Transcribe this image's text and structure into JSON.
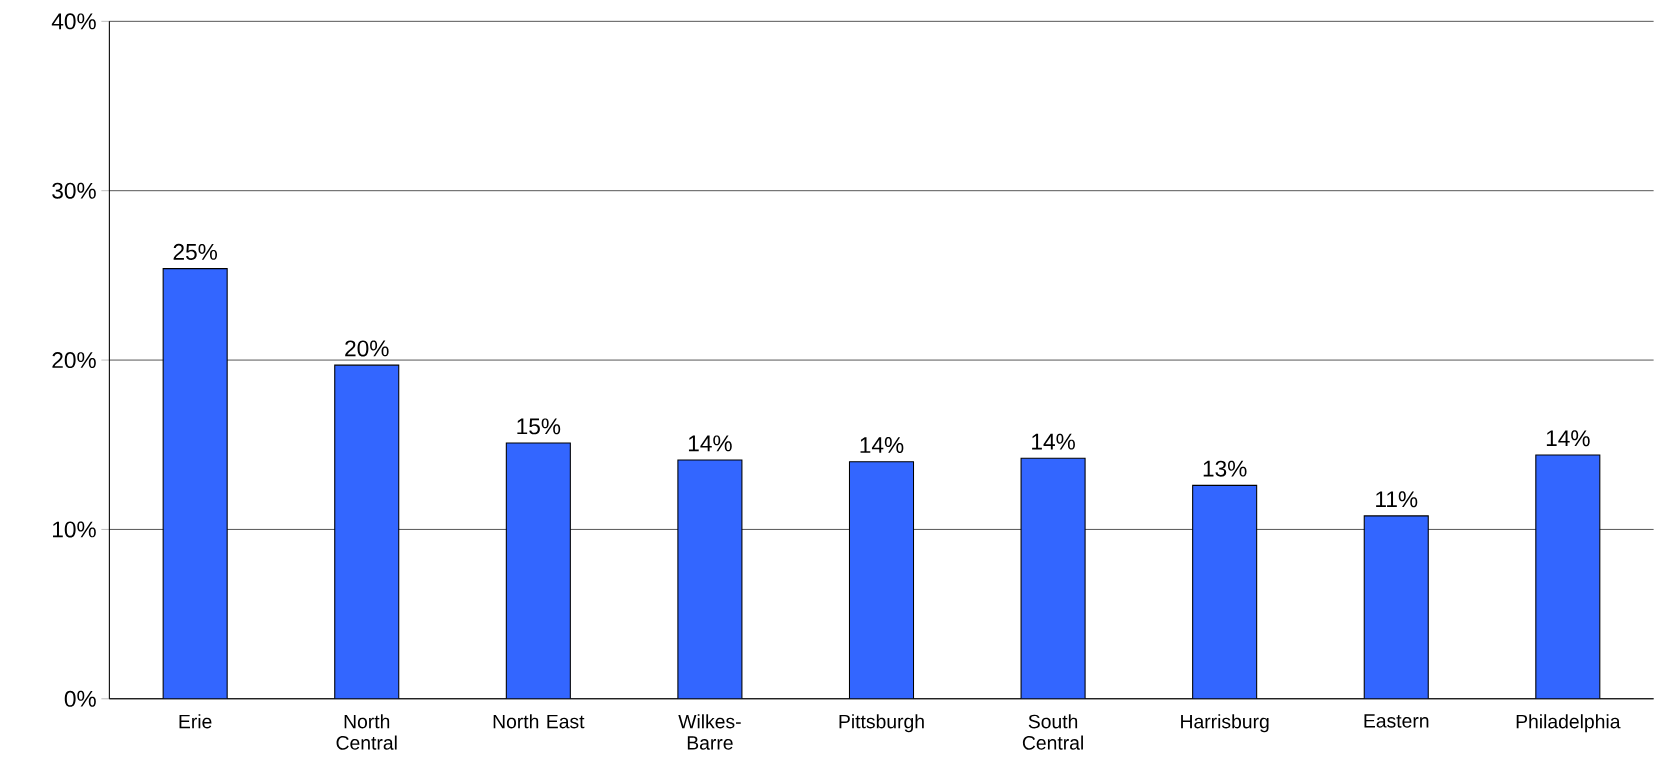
{
  "chart_data": {
    "type": "bar",
    "categories": [
      "Erie",
      "North Central",
      "North East",
      "Wilkes-Barre",
      "Pittsburgh",
      "South Central",
      "Harrisburg",
      "Eastern",
      "Philadelphia"
    ],
    "values": [
      25.4,
      19.7,
      15.1,
      14.1,
      14.0,
      14.2,
      12.6,
      10.8,
      14.4
    ],
    "value_labels": [
      "25%",
      "20%",
      "15%",
      "14%",
      "14%",
      "14%",
      "13%",
      "11%",
      "14%"
    ],
    "color": "#3366ff",
    "ylim": [
      0,
      40
    ],
    "yticks": [
      {
        "value": 0,
        "label": "0%"
      },
      {
        "value": 10,
        "label": "10%"
      },
      {
        "value": 20,
        "label": "20%"
      },
      {
        "value": 30,
        "label": "30%"
      },
      {
        "value": 40,
        "label": "40%"
      }
    ],
    "grid": "y"
  }
}
